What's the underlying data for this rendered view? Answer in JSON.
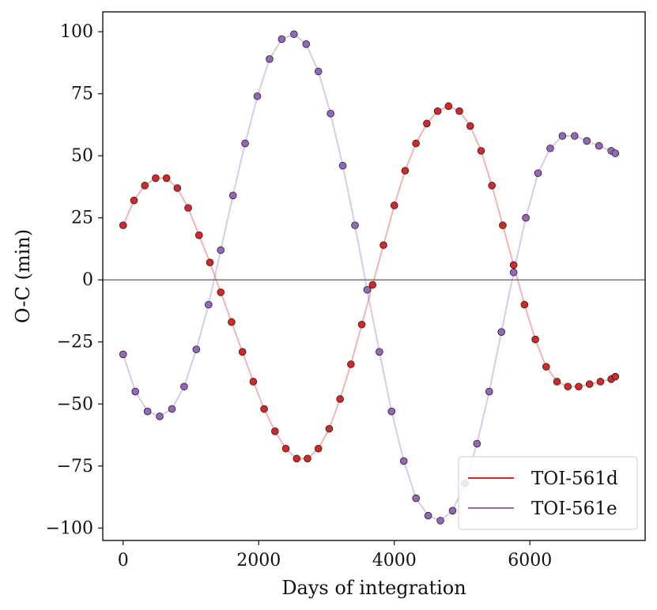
{
  "chart_data": {
    "type": "scatter",
    "xlabel": "Days of integration",
    "ylabel": "O-C (min)",
    "xlim": [
      -300,
      7700
    ],
    "ylim": [
      -105,
      108
    ],
    "xticks": [
      0,
      2000,
      4000,
      6000
    ],
    "yticks": [
      100,
      75,
      50,
      25,
      0,
      -25,
      -50,
      -75,
      -100
    ],
    "ytick_labels": [
      "100",
      "75",
      "50",
      "25",
      "0",
      "−25",
      "−50",
      "−75",
      "−100"
    ],
    "zero_line": 0,
    "legend_position": "lower-right",
    "series": [
      {
        "name": "TOI-561d",
        "color": "#d62728",
        "line_color": "#d62728",
        "marker_edge": "#222222",
        "x": [
          0,
          160,
          320,
          480,
          640,
          800,
          960,
          1120,
          1280,
          1440,
          1600,
          1760,
          1920,
          2080,
          2240,
          2400,
          2560,
          2720,
          2880,
          3040,
          3200,
          3360,
          3520,
          3680,
          3840,
          4000,
          4160,
          4320,
          4480,
          4640,
          4800,
          4960,
          5120,
          5280,
          5440,
          5600,
          5760,
          5920,
          6080,
          6240,
          6400,
          6560,
          6720,
          6880,
          7040,
          7200,
          7260
        ],
        "y": [
          22,
          32,
          38,
          41,
          41,
          37,
          29,
          18,
          7,
          -5,
          -17,
          -29,
          -41,
          -52,
          -61,
          -68,
          -72,
          -72,
          -68,
          -60,
          -48,
          -34,
          -18,
          -2,
          14,
          30,
          44,
          55,
          63,
          68,
          70,
          68,
          62,
          52,
          38,
          22,
          6,
          -10,
          -24,
          -35,
          -41,
          -43,
          -43,
          -42,
          -41,
          -40,
          -39
        ]
      },
      {
        "name": "TOI-561e",
        "color": "#9467bd",
        "line_color": "#9467bd",
        "marker_edge": "#222222",
        "x": [
          0,
          180,
          360,
          540,
          720,
          900,
          1080,
          1260,
          1440,
          1620,
          1800,
          1980,
          2160,
          2340,
          2520,
          2700,
          2880,
          3060,
          3240,
          3420,
          3600,
          3780,
          3960,
          4140,
          4320,
          4500,
          4680,
          4860,
          5040,
          5220,
          5400,
          5580,
          5760,
          5940,
          6120,
          6300,
          6480,
          6660,
          6840,
          7020,
          7200,
          7260
        ],
        "y": [
          -30,
          -45,
          -53,
          -55,
          -52,
          -43,
          -28,
          -10,
          12,
          34,
          55,
          74,
          89,
          97,
          99,
          95,
          84,
          67,
          46,
          22,
          -4,
          -29,
          -53,
          -73,
          -88,
          -95,
          -97,
          -93,
          -82,
          -66,
          -45,
          -21,
          3,
          25,
          43,
          53,
          58,
          58,
          56,
          54,
          52,
          51
        ]
      }
    ]
  }
}
